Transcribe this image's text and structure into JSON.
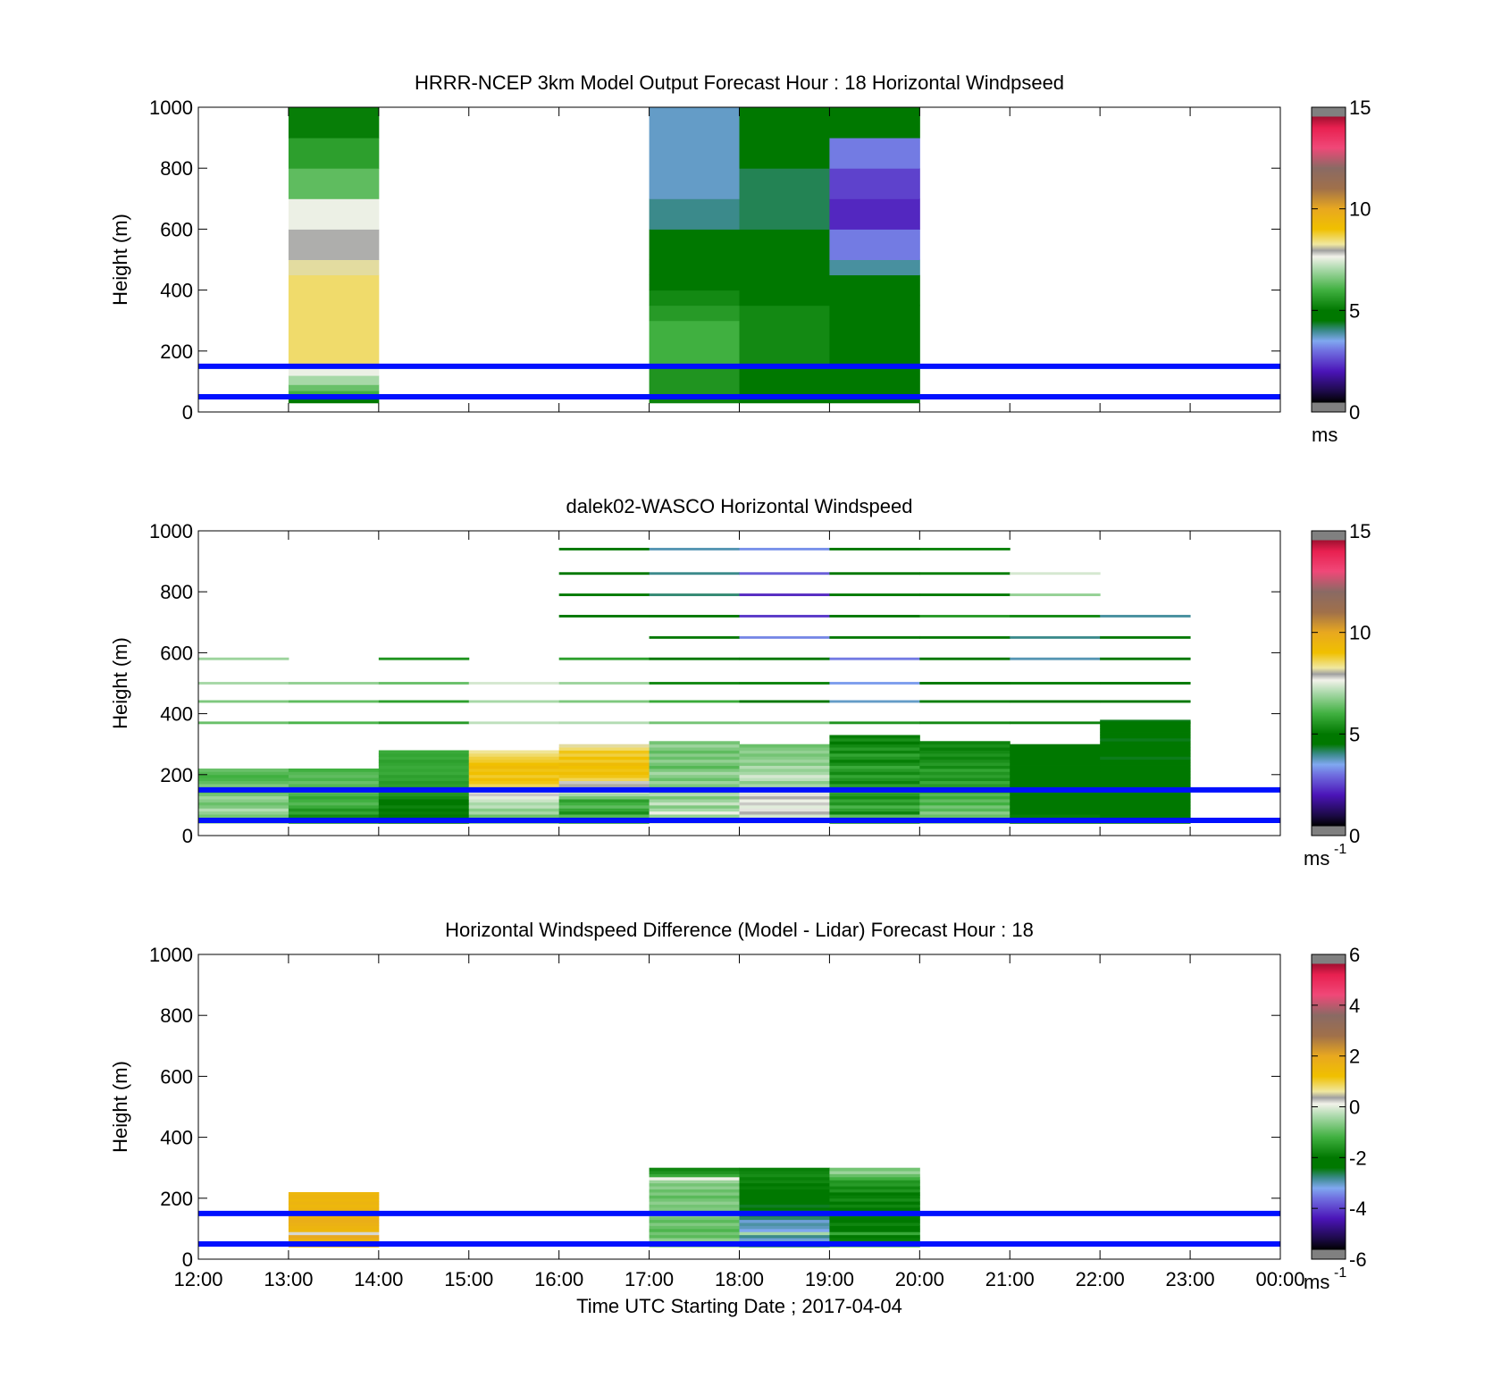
{
  "chart_data": [
    {
      "type": "heatmap",
      "title": "HRRR-NCEP 3km Model Output   Forecast Hour : 18 Horizontal Windpseed",
      "xlabel": "",
      "ylabel": "Height (m)",
      "xlim": [
        12,
        24
      ],
      "ylim": [
        0,
        1000
      ],
      "y_ticks": [
        "0",
        "200",
        "400",
        "600",
        "800",
        "1000"
      ],
      "colorbar": {
        "ticks": [
          "0",
          "5",
          "10",
          "15"
        ],
        "unit": "ms",
        "unit_sup": "",
        "range": [
          0,
          15
        ]
      },
      "reference_lines_m": [
        50,
        150
      ],
      "cells": [
        {
          "x0": 13,
          "x1": 14,
          "y0": 30,
          "y1": 50,
          "v": 5.0
        },
        {
          "x0": 13,
          "x1": 14,
          "y0": 50,
          "y1": 70,
          "v": 6.0
        },
        {
          "x0": 13,
          "x1": 14,
          "y0": 70,
          "y1": 90,
          "v": 6.4
        },
        {
          "x0": 13,
          "x1": 14,
          "y0": 90,
          "y1": 120,
          "v": 7.0
        },
        {
          "x0": 13,
          "x1": 14,
          "y0": 120,
          "y1": 150,
          "v": 7.6
        },
        {
          "x0": 13,
          "x1": 14,
          "y0": 150,
          "y1": 450,
          "v": 8.5
        },
        {
          "x0": 13,
          "x1": 14,
          "y0": 450,
          "y1": 500,
          "v": 8.2
        },
        {
          "x0": 13,
          "x1": 14,
          "y0": 500,
          "y1": 600,
          "v": 7.9
        },
        {
          "x0": 13,
          "x1": 14,
          "y0": 600,
          "y1": 700,
          "v": 7.6
        },
        {
          "x0": 13,
          "x1": 14,
          "y0": 700,
          "y1": 800,
          "v": 6.3
        },
        {
          "x0": 13,
          "x1": 14,
          "y0": 800,
          "y1": 900,
          "v": 5.7
        },
        {
          "x0": 13,
          "x1": 14,
          "y0": 900,
          "y1": 1000,
          "v": 5.1
        },
        {
          "x0": 17,
          "x1": 18,
          "y0": 30,
          "y1": 50,
          "v": 5.2
        },
        {
          "x0": 17,
          "x1": 18,
          "y0": 50,
          "y1": 150,
          "v": 5.5
        },
        {
          "x0": 17,
          "x1": 18,
          "y0": 150,
          "y1": 300,
          "v": 6.0
        },
        {
          "x0": 17,
          "x1": 18,
          "y0": 300,
          "y1": 350,
          "v": 5.6
        },
        {
          "x0": 17,
          "x1": 18,
          "y0": 350,
          "y1": 400,
          "v": 5.3
        },
        {
          "x0": 17,
          "x1": 18,
          "y0": 400,
          "y1": 450,
          "v": 4.9
        },
        {
          "x0": 17,
          "x1": 18,
          "y0": 450,
          "y1": 500,
          "v": 4.7
        },
        {
          "x0": 17,
          "x1": 18,
          "y0": 500,
          "y1": 600,
          "v": 4.5
        },
        {
          "x0": 17,
          "x1": 18,
          "y0": 600,
          "y1": 700,
          "v": 4.0
        },
        {
          "x0": 17,
          "x1": 18,
          "y0": 700,
          "y1": 1000,
          "v": 3.7
        },
        {
          "x0": 18,
          "x1": 19,
          "y0": 30,
          "y1": 150,
          "v": 4.9
        },
        {
          "x0": 18,
          "x1": 19,
          "y0": 150,
          "y1": 350,
          "v": 5.3
        },
        {
          "x0": 18,
          "x1": 19,
          "y0": 350,
          "y1": 500,
          "v": 5.0
        },
        {
          "x0": 18,
          "x1": 19,
          "y0": 500,
          "y1": 600,
          "v": 4.8
        },
        {
          "x0": 18,
          "x1": 19,
          "y0": 600,
          "y1": 800,
          "v": 4.2
        },
        {
          "x0": 18,
          "x1": 19,
          "y0": 800,
          "y1": 900,
          "v": 4.5
        },
        {
          "x0": 18,
          "x1": 19,
          "y0": 900,
          "y1": 1000,
          "v": 4.8
        },
        {
          "x0": 19,
          "x1": 20,
          "y0": 30,
          "y1": 150,
          "v": 4.6
        },
        {
          "x0": 19,
          "x1": 20,
          "y0": 150,
          "y1": 350,
          "v": 4.8
        },
        {
          "x0": 19,
          "x1": 20,
          "y0": 350,
          "y1": 450,
          "v": 4.6
        },
        {
          "x0": 19,
          "x1": 20,
          "y0": 450,
          "y1": 500,
          "v": 3.9
        },
        {
          "x0": 19,
          "x1": 20,
          "y0": 500,
          "y1": 600,
          "v": 3.1
        },
        {
          "x0": 19,
          "x1": 20,
          "y0": 600,
          "y1": 700,
          "v": 2.2
        },
        {
          "x0": 19,
          "x1": 20,
          "y0": 700,
          "y1": 800,
          "v": 2.5
        },
        {
          "x0": 19,
          "x1": 20,
          "y0": 800,
          "y1": 900,
          "v": 3.1
        },
        {
          "x0": 19,
          "x1": 20,
          "y0": 900,
          "y1": 1000,
          "v": 4.5
        }
      ]
    },
    {
      "type": "heatmap",
      "title": "dalek02-WASCO  Horizontal Windspeed",
      "xlabel": "",
      "ylabel": "Height (m)",
      "xlim": [
        12,
        24
      ],
      "ylim": [
        0,
        1000
      ],
      "y_ticks": [
        "0",
        "200",
        "400",
        "600",
        "800",
        "1000"
      ],
      "colorbar": {
        "ticks": [
          "0",
          "5",
          "10",
          "15"
        ],
        "unit": "ms",
        "unit_sup": "-1",
        "range": [
          0,
          15
        ]
      },
      "reference_lines_m": [
        50,
        150
      ],
      "range_gates_m": [
        40,
        50,
        60,
        70,
        80,
        90,
        100,
        110,
        120,
        130,
        140,
        150,
        160,
        170,
        180,
        190,
        200,
        210,
        220,
        230,
        240,
        250,
        260,
        270,
        280,
        290,
        300,
        310,
        320,
        330,
        340,
        350,
        360,
        370
      ],
      "sparse_levels_m": [
        370,
        440,
        500,
        580,
        650,
        720,
        790,
        860,
        940
      ],
      "columns": [
        {
          "x0": 12,
          "x1": 13,
          "top": 220,
          "dense": [
            6.9,
            6.7,
            6.5,
            6.8,
            7.1,
            6.6,
            6.4,
            6.7,
            6.9,
            6.5,
            6.2,
            6.4,
            6.6,
            6.3,
            6.1,
            6.0,
            6.2,
            6.4
          ],
          "sparse": [
            6.4,
            6.6,
            7.0,
            6.9,
            null,
            null,
            null,
            null,
            null
          ]
        },
        {
          "x0": 13,
          "x1": 14,
          "top": 220,
          "dense": [
            5.4,
            5.6,
            5.3,
            5.8,
            5.5,
            5.9,
            6.2,
            6.0,
            5.8,
            6.1,
            6.3,
            6.0,
            6.2,
            6.4,
            6.1,
            6.3,
            6.2,
            6.0
          ],
          "sparse": [
            6.1,
            6.3,
            6.8,
            null,
            null,
            null,
            null,
            null,
            null
          ]
        },
        {
          "x0": 14,
          "x1": 15,
          "top": 280,
          "dense": [
            4.8,
            5.0,
            4.7,
            5.1,
            4.9,
            5.2,
            5.0,
            4.8,
            5.3,
            5.5,
            5.6,
            5.4,
            5.7,
            5.6,
            5.8,
            5.7,
            5.9,
            5.8,
            5.9,
            5.8,
            5.7,
            5.9,
            5.8,
            5.9
          ],
          "sparse": [
            5.6,
            5.7,
            6.4,
            5.5,
            null,
            null,
            null,
            null,
            null
          ]
        },
        {
          "x0": 15,
          "x1": 16,
          "top": 280,
          "dense": [
            6.5,
            6.8,
            6.4,
            7.0,
            6.7,
            7.2,
            7.0,
            7.3,
            7.5,
            7.8,
            7.6,
            8.2,
            8.6,
            8.9,
            9.1,
            8.8,
            9.0,
            8.9,
            9.2,
            9.0,
            8.8,
            8.7,
            8.5,
            8.3
          ],
          "sparse": [
            7.2,
            7.0,
            7.4,
            null,
            null,
            null,
            null,
            null,
            null
          ]
        },
        {
          "x0": 16,
          "x1": 17,
          "top": 300,
          "dense": [
            5.6,
            5.9,
            6.2,
            5.4,
            5.8,
            6.3,
            6.0,
            5.7,
            6.5,
            7.0,
            7.4,
            7.7,
            8.0,
            7.8,
            8.6,
            8.9,
            9.1,
            8.9,
            9.0,
            9.2,
            8.8,
            9.0,
            8.7,
            8.9,
            8.5,
            8.2
          ],
          "sparse": [
            7.1,
            6.6,
            6.9,
            5.7,
            null,
            4.9,
            5.0,
            5.0,
            4.7
          ]
        },
        {
          "x0": 17,
          "x1": 18,
          "top": 310,
          "dense": [
            7.4,
            7.2,
            6.8,
            7.6,
            7.0,
            6.6,
            7.3,
            6.9,
            6.5,
            7.1,
            6.8,
            6.3,
            6.6,
            6.9,
            6.4,
            6.7,
            7.0,
            6.6,
            6.2,
            6.5,
            6.8,
            6.4,
            6.7,
            6.3,
            6.6,
            6.9,
            6.5
          ],
          "sparse": [
            6.5,
            5.9,
            5.3,
            4.8,
            4.7,
            4.6,
            4.1,
            4.0,
            3.8
          ]
        },
        {
          "x0": 18,
          "x1": 19,
          "top": 300,
          "dense": [
            7.6,
            7.8,
            7.4,
            7.9,
            7.7,
            7.5,
            7.8,
            7.6,
            7.9,
            7.7,
            7.5,
            7.3,
            7.0,
            6.7,
            7.2,
            7.4,
            7.0,
            6.8,
            7.1,
            6.6,
            6.9,
            6.7,
            6.5,
            6.8,
            6.6,
            6.4
          ],
          "sparse": [
            6.6,
            4.9,
            5.2,
            4.6,
            3.2,
            2.4,
            2.2,
            2.8,
            3.3
          ]
        },
        {
          "x0": 19,
          "x1": 20,
          "top": 330,
          "dense": [
            5.4,
            5.9,
            6.3,
            5.2,
            5.7,
            6.1,
            5.5,
            5.8,
            5.3,
            5.6,
            5.9,
            5.4,
            5.7,
            5.2,
            5.5,
            5.8,
            5.3,
            5.6,
            5.9,
            5.4,
            5.1,
            5.5,
            5.8,
            5.2,
            5.6,
            5.3,
            5.0,
            5.4,
            5.1
          ],
          "sparse": [
            5.5,
            3.7,
            3.4,
            3.1,
            4.7,
            4.6,
            5.0,
            4.9,
            4.6
          ]
        },
        {
          "x0": 20,
          "x1": 21,
          "top": 310,
          "dense": [
            6.6,
            6.9,
            6.4,
            6.7,
            6.2,
            6.5,
            6.0,
            6.3,
            5.9,
            6.2,
            5.7,
            6.0,
            5.6,
            5.9,
            5.4,
            5.7,
            5.5,
            5.8,
            5.3,
            5.6,
            5.4,
            5.2,
            5.5,
            5.3,
            5.1,
            5.4,
            5.2
          ],
          "sparse": [
            5.3,
            5.1,
            5.0,
            4.9,
            4.9,
            5.6,
            4.9,
            5.1,
            5.2
          ]
        },
        {
          "x0": 21,
          "x1": 22,
          "top": 300,
          "dense": [
            5.0,
            4.8,
            5.1,
            4.7,
            4.9,
            5.0,
            4.8,
            4.6,
            4.9,
            4.7,
            5.0,
            4.8,
            4.5,
            4.8,
            4.6,
            4.9,
            4.7,
            4.6,
            4.8,
            4.5,
            4.7,
            4.6,
            4.9,
            4.7,
            4.5,
            4.8
          ],
          "sparse": [
            5.2,
            5.0,
            5.1,
            3.8,
            4.0,
            5.3,
            6.8,
            7.4,
            null
          ]
        },
        {
          "x0": 22,
          "x1": 23,
          "top": 370,
          "dense": [
            5.0,
            4.7,
            4.9,
            4.6,
            4.8,
            5.0,
            4.7,
            4.9,
            4.6,
            4.8,
            4.5,
            4.7,
            4.9,
            4.6,
            4.8,
            4.5,
            4.7,
            4.6,
            4.8,
            4.5,
            4.7,
            4.4,
            4.6,
            4.8,
            4.5,
            4.7,
            4.6,
            4.4,
            4.6,
            4.8,
            4.5,
            4.7,
            4.6,
            4.4
          ],
          "sparse": [
            4.6,
            4.7,
            4.8,
            4.7,
            4.8,
            3.9,
            null,
            null,
            null
          ]
        }
      ]
    },
    {
      "type": "heatmap",
      "title": "Horizontal Windspeed Difference (Model - Lidar) Forecast Hour : 18",
      "xlabel": "Time UTC  Starting Date ; 2017-04-04",
      "ylabel": "Height (m)",
      "xlim": [
        12,
        24
      ],
      "ylim": [
        0,
        1000
      ],
      "x_ticks": [
        "12:00",
        "13:00",
        "14:00",
        "15:00",
        "16:00",
        "17:00",
        "18:00",
        "19:00",
        "20:00",
        "21:00",
        "22:00",
        "23:00",
        "00:00"
      ],
      "y_ticks": [
        "0",
        "200",
        "400",
        "600",
        "800",
        "1000"
      ],
      "colorbar": {
        "ticks": [
          "-6",
          "-4",
          "-2",
          "0",
          "2",
          "4",
          "6"
        ],
        "unit": "ms",
        "unit_sup": "-1",
        "range": [
          -6,
          6
        ]
      },
      "reference_lines_m": [
        50,
        150
      ],
      "range_gates_m": [
        40,
        50,
        60,
        70,
        80,
        90,
        100,
        110,
        120,
        130,
        140,
        150,
        160,
        170,
        180,
        190,
        200,
        210,
        220,
        230,
        240,
        250,
        260,
        270,
        280,
        290
      ],
      "columns": [
        {
          "x0": 13,
          "x1": 14,
          "top": 220,
          "dense": [
            1.6,
            1.8,
            1.7,
            2.0,
            0.2,
            1.5,
            1.6,
            1.7,
            1.8,
            1.7,
            1.6,
            1.5,
            1.6,
            1.5,
            1.6,
            1.5,
            1.6,
            1.5
          ]
        },
        {
          "x0": 17,
          "x1": 18,
          "top": 295,
          "dense": [
            -0.7,
            -0.9,
            -0.6,
            -1.0,
            -0.8,
            -1.1,
            -0.9,
            -0.7,
            -1.0,
            -0.8,
            -0.6,
            -0.9,
            -0.7,
            -0.8,
            -0.6,
            -0.8,
            -1.0,
            -0.7,
            -0.9,
            -0.6,
            -0.8,
            -0.5,
            0.1,
            -1.3,
            -1.6,
            -1.8
          ]
        },
        {
          "x0": 18,
          "x1": 19,
          "top": 295,
          "dense": [
            -2.6,
            -2.9,
            -3.1,
            -2.8,
            -0.4,
            -3.2,
            -3.0,
            -2.9,
            -3.1,
            -2.7,
            -2.6,
            -2.8,
            -2.4,
            -2.5,
            -2.2,
            -2.3,
            -2.0,
            -2.2,
            -2.1,
            -1.9,
            -2.0,
            -1.8,
            -1.9,
            -1.7,
            -1.8,
            -1.9
          ]
        },
        {
          "x0": 19,
          "x1": 20,
          "top": 295,
          "dense": [
            -1.0,
            -1.6,
            -1.9,
            -2.1,
            -1.3,
            -2.2,
            -2.0,
            -1.8,
            -2.3,
            -2.1,
            -1.9,
            -2.0,
            -2.2,
            -1.8,
            -2.0,
            -1.7,
            -1.9,
            -2.0,
            -1.6,
            -1.8,
            -1.5,
            -1.6,
            -1.2,
            -0.9,
            -0.5,
            -0.8
          ]
        }
      ]
    }
  ]
}
